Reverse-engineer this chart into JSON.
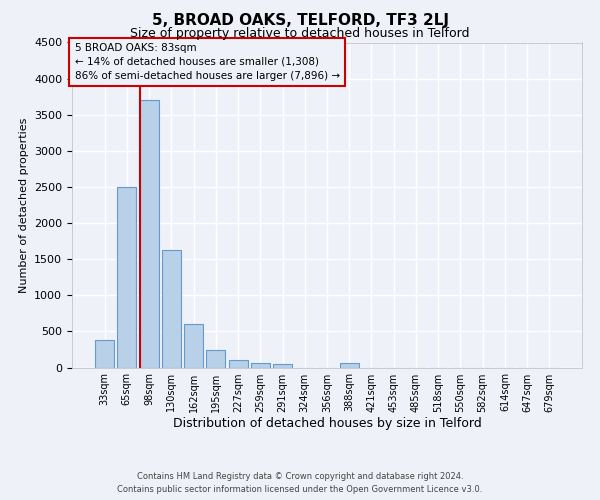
{
  "title": "5, BROAD OAKS, TELFORD, TF3 2LJ",
  "subtitle": "Size of property relative to detached houses in Telford",
  "xlabel": "Distribution of detached houses by size in Telford",
  "ylabel": "Number of detached properties",
  "bar_values": [
    375,
    2500,
    3700,
    1625,
    600,
    240,
    100,
    60,
    50,
    0,
    0,
    60,
    0,
    0,
    0,
    0,
    0,
    0,
    0,
    0,
    0
  ],
  "bin_labels": [
    "33sqm",
    "65sqm",
    "98sqm",
    "130sqm",
    "162sqm",
    "195sqm",
    "227sqm",
    "259sqm",
    "291sqm",
    "324sqm",
    "356sqm",
    "388sqm",
    "421sqm",
    "453sqm",
    "485sqm",
    "518sqm",
    "550sqm",
    "582sqm",
    "614sqm",
    "647sqm",
    "679sqm"
  ],
  "bar_color": "#b8d0e8",
  "bar_edge_color": "#6699cc",
  "property_line_bin_index": 1.57,
  "annotation_title": "5 BROAD OAKS: 83sqm",
  "annotation_line1": "← 14% of detached houses are smaller (1,308)",
  "annotation_line2": "86% of semi-detached houses are larger (7,896) →",
  "annotation_box_color": "#cc0000",
  "ylim": [
    0,
    4500
  ],
  "yticks": [
    0,
    500,
    1000,
    1500,
    2000,
    2500,
    3000,
    3500,
    4000,
    4500
  ],
  "footer_line1": "Contains HM Land Registry data © Crown copyright and database right 2024.",
  "footer_line2": "Contains public sector information licensed under the Open Government Licence v3.0.",
  "background_color": "#eef2f8",
  "grid_color": "#ffffff",
  "title_fontsize": 11,
  "subtitle_fontsize": 9,
  "xlabel_fontsize": 9,
  "ylabel_fontsize": 8,
  "tick_fontsize": 8,
  "xtick_fontsize": 7,
  "footer_fontsize": 6
}
